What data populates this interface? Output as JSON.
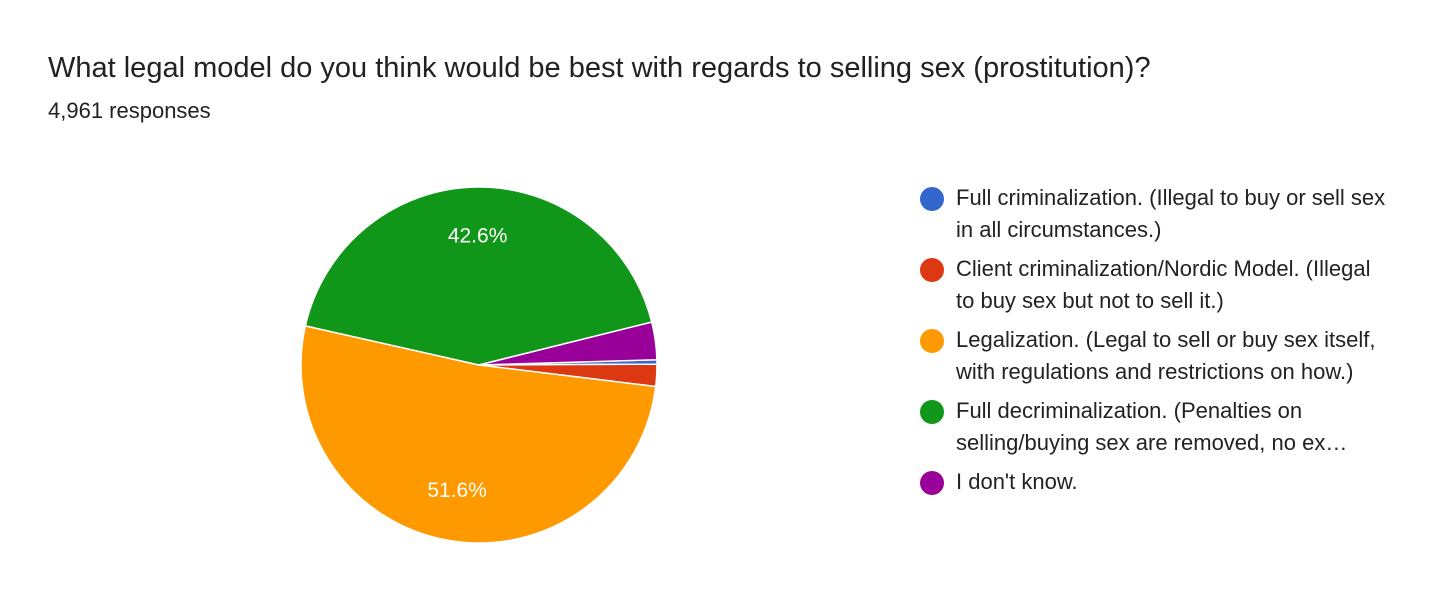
{
  "chart_data": {
    "type": "pie",
    "title": "What legal model do you think would be best with regards to selling sex (prostitution)?",
    "subtitle": "4,961 responses",
    "categories": [
      "Full criminalization. (Illegal to buy or sell sex in all circumstances.)",
      "Client criminalization/Nordic Model. (Illegal to buy sex but not to sell it.)",
      "Legalization. (Legal to sell or buy sex itself, with regulations and restrictions on how.)",
      "Full decriminalization. (Penalties on selling/buying sex are removed, no ex…",
      "I don't know."
    ],
    "values": [
      0.4,
      2.0,
      51.6,
      42.6,
      3.4
    ],
    "value_labels": [
      null,
      null,
      "51.6%",
      "42.6%",
      null
    ],
    "colors": [
      "#3366cc",
      "#dc3912",
      "#ff9900",
      "#109618",
      "#990099"
    ],
    "legend": "right"
  }
}
